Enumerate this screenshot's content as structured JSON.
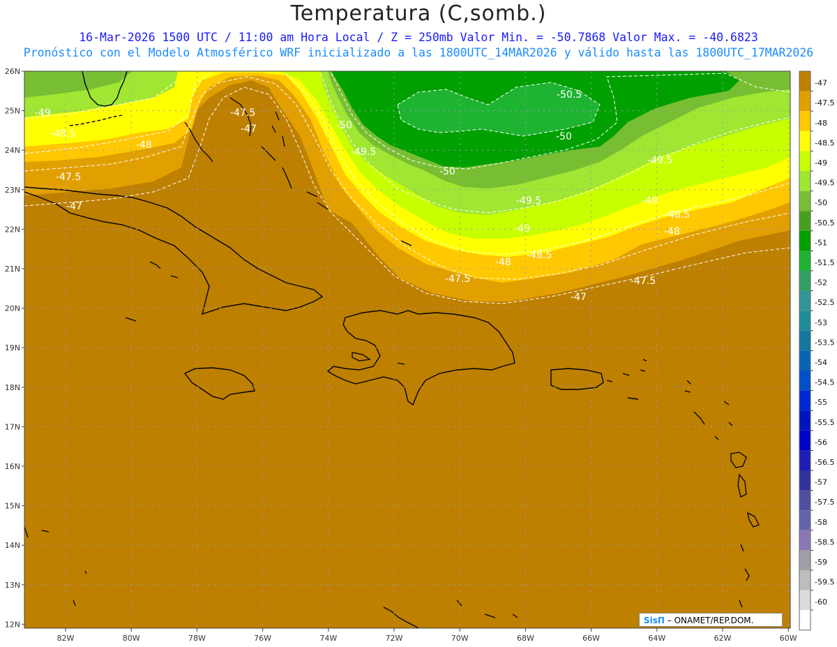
{
  "title": "Temperatura (C,somb.)",
  "subtitle1": "16-Mar-2026  1500 UTC / 11:00 am Hora Local / Z = 250mb  Valor Min. = -50.7868  Valor Max. = -40.6823",
  "subtitle2": "Pronóstico con el Modelo Atmosférico WRF inicializado a las 1800UTC_14MAR2026 y válido hasta las  1800UTC_17MAR2026",
  "credit": {
    "brand": "SisΠ",
    "org": " – ONAMET/REP.DOM."
  },
  "lon_labels": [
    "82W",
    "80W",
    "78W",
    "76W",
    "74W",
    "72W",
    "70W",
    "68W",
    "66W",
    "64W",
    "62W",
    "60W"
  ],
  "lat_labels": [
    "26N",
    "25N",
    "24N",
    "23N",
    "22N",
    "21N",
    "20N",
    "19N",
    "18N",
    "17N",
    "16N",
    "15N",
    "14N",
    "13N",
    "12N"
  ],
  "colorbar": {
    "labels": [
      "-47",
      "-47.5",
      "-48",
      "-48.5",
      "-49",
      "-49.5",
      "-50",
      "-50.5",
      "-51",
      "-51.5",
      "-52",
      "-52.5",
      "-53",
      "-53.5",
      "-54",
      "-54.5",
      "-55",
      "-55.5",
      "-56",
      "-56.5",
      "-57",
      "-57.5",
      "-58",
      "-58.5",
      "-59",
      "-59.5",
      "-60"
    ],
    "colors": [
      "#be8000",
      "#e1a000",
      "#ffc800",
      "#ffff00",
      "#c8ff00",
      "#a0e632",
      "#78be32",
      "#46a01e",
      "#00a000",
      "#1eb432",
      "#32a064",
      "#329696",
      "#1e8c9b",
      "#1478a0",
      "#0a64b4",
      "#0050c8",
      "#0028d2",
      "#0014be",
      "#0000c8",
      "#1e1eb4",
      "#3232a0",
      "#5050a0",
      "#6464aa",
      "#8c78b4",
      "#a0a0aa",
      "#bebebe",
      "#dcdcdc",
      "#ffffff"
    ]
  },
  "contour_labels": [
    "-50.5",
    "-50",
    "-50",
    "-50",
    "-49.5",
    "-49.5",
    "-49.5",
    "-49",
    "-49",
    "-49",
    "-48.5",
    "-48.5",
    "-48.5",
    "-48",
    "-48",
    "-48",
    "-47.5",
    "-47.5",
    "-47.5",
    "-47.5",
    "-47",
    "-47",
    "-47"
  ],
  "field_colors": {
    "warm": "#be8000",
    "b47_5": "#e1a000",
    "b48": "#ffc800",
    "b48_5": "#ffff00",
    "b49": "#c8ff00",
    "b49_5": "#a0e632",
    "b50": "#78be32",
    "b50_5": "#00a000",
    "core": "#1eb432"
  }
}
